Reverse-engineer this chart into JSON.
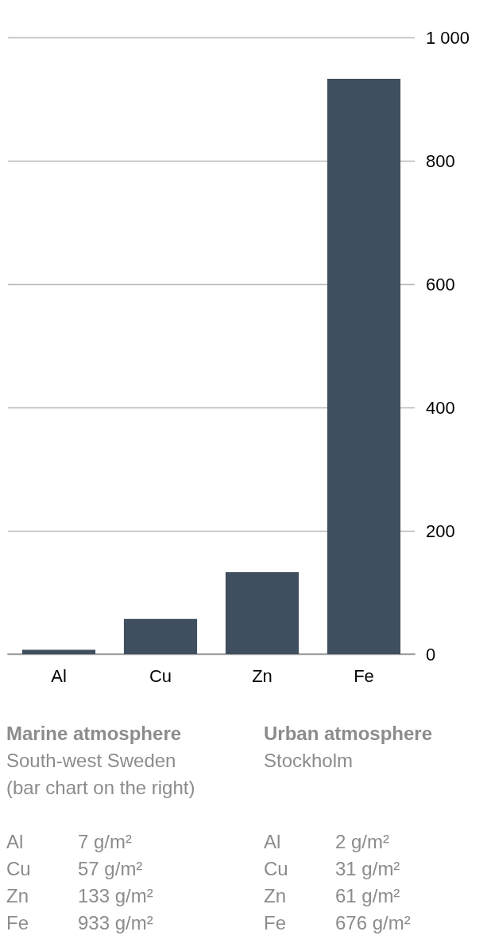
{
  "chart_data": {
    "type": "bar",
    "categories": [
      "Al",
      "Cu",
      "Zn",
      "Fe"
    ],
    "values": [
      7,
      57,
      133,
      933
    ],
    "color": "#3f4f5f",
    "ylim": [
      0,
      1000
    ],
    "yticks": [
      0,
      200,
      400,
      600,
      800,
      {
        "value": 1000,
        "label": "1 000"
      }
    ],
    "grid": "y",
    "annotations": [
      "Marine atmosphere",
      "South-west Sweden\n(bar chart on the right)",
      "Al\t7 g/m²\nCu\t57 g/m²\nZn\t133 g/m²\nFe\t933 g/m²",
      "Urban atmosphere",
      "Stockholm",
      "Al\t2 g/m²\nCu\t31 g/m²\nZn\t61 g/m²\nFe\t676 g/m²"
    ]
  }
}
